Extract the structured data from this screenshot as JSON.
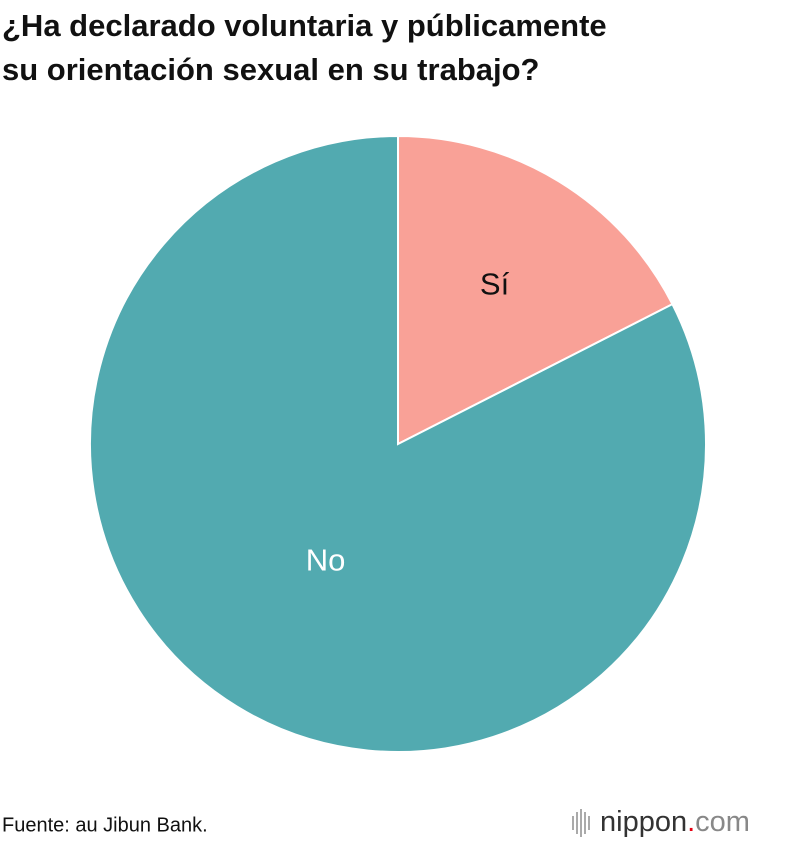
{
  "chart_data": {
    "type": "pie",
    "title": [
      "¿Ha declarado voluntaria y públicamente",
      "su orientación sexual en su trabajo?"
    ],
    "categories": [
      "Sí",
      "No"
    ],
    "values": [
      17.5,
      82.5
    ],
    "colors": [
      "#f9a197",
      "#52aab0"
    ],
    "label_colors": [
      "#111111",
      "#ffffff"
    ],
    "source": "Fuente: au Jibun Bank.",
    "logo": [
      "nippon",
      ".",
      "com"
    ]
  }
}
